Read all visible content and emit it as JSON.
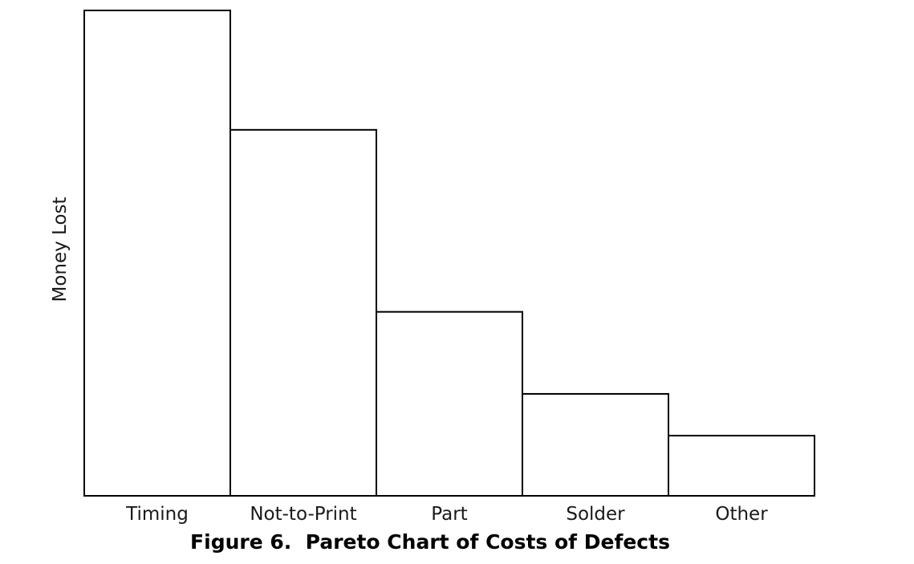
{
  "figure": {
    "caption": "Figure 6.  Pareto Chart of Costs of Defects"
  },
  "chart_data": {
    "type": "bar",
    "title": "",
    "categories": [
      "Timing",
      "Not-to-Print",
      "Part",
      "Solder",
      "Other"
    ],
    "values": [
      100,
      75.4,
      37.9,
      21.0,
      12.4
    ],
    "values_note": "no numeric y-axis shown; values are relative bar heights as percent of tallest bar",
    "xlabel": "",
    "ylabel": "Money Lost",
    "ylim": [
      0,
      100
    ],
    "grid": false,
    "legend": false,
    "bar_fill": "#ffffff",
    "bar_stroke": "#000000",
    "text_color": "#1a1a1a"
  }
}
